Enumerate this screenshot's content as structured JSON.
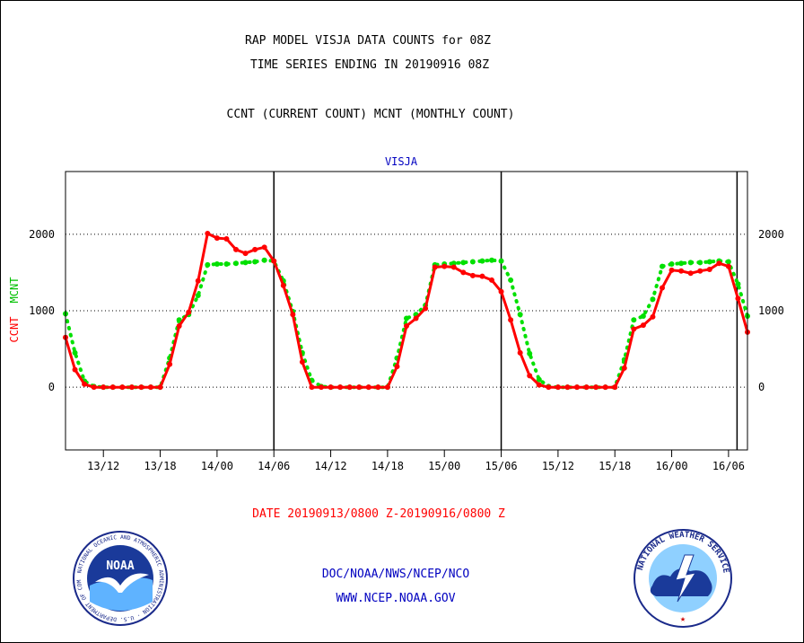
{
  "header": {
    "title_line1": "RAP MODEL VISJA DATA COUNTS for 08Z",
    "title_line2": "TIME SERIES ENDING IN 20190916 08Z",
    "subtitle": "CCNT (CURRENT COUNT) MCNT (MONTHLY COUNT)"
  },
  "footer": {
    "date_range": "DATE 20190913/0800 Z-20190916/0800 Z",
    "org_line": "DOC/NOAA/NWS/NCEP/NCO",
    "url": "WWW.NCEP.NOAA.GOV"
  },
  "logos": {
    "noaa": "NOAA",
    "noaa_ring": "NATIONAL OCEANIC AND ATMOSPHERIC ADMINISTRATION · U.S. DEPARTMENT OF COMMERCE",
    "nws_ring": "NATIONAL WEATHER SERVICE"
  },
  "colors": {
    "ccnt": "#ff0000",
    "mcnt": "#00e000",
    "title_blue": "#0000c0",
    "date_red": "#ff0000"
  },
  "chart_data": {
    "type": "line",
    "title": "VISJA",
    "ylabel_left": [
      "CCNT",
      "MCNT"
    ],
    "ylim": [
      -820,
      2820
    ],
    "yticks": [
      0,
      1000,
      2000
    ],
    "xlim": [
      0,
      72
    ],
    "x_start": "2019-09-13 08Z",
    "xticks": [
      {
        "x": 4,
        "label": "13/12"
      },
      {
        "x": 10,
        "label": "13/18"
      },
      {
        "x": 16,
        "label": "14/00"
      },
      {
        "x": 22,
        "label": "14/06"
      },
      {
        "x": 28,
        "label": "14/12"
      },
      {
        "x": 34,
        "label": "14/18"
      },
      {
        "x": 40,
        "label": "15/00"
      },
      {
        "x": 46,
        "label": "15/06"
      },
      {
        "x": 52,
        "label": "15/12"
      },
      {
        "x": 58,
        "label": "15/18"
      },
      {
        "x": 64,
        "label": "16/00"
      },
      {
        "x": 70,
        "label": "16/06"
      }
    ],
    "vertical_lines": [
      22,
      46,
      70.9
    ],
    "grid": "horizontal dotted at 0, 1000, 2000",
    "series": [
      {
        "name": "CCNT",
        "color": "#ff0000",
        "x": [
          0,
          1,
          2,
          3,
          4,
          5,
          6,
          7,
          8,
          9,
          10,
          11,
          12,
          13,
          14,
          15,
          16,
          17,
          18,
          19,
          20,
          21,
          22,
          23,
          24,
          25,
          26,
          27,
          28,
          29,
          30,
          31,
          32,
          33,
          34,
          35,
          36,
          37,
          38,
          39,
          40,
          41,
          42,
          43,
          44,
          45,
          46,
          47,
          48,
          49,
          50,
          51,
          52,
          53,
          54,
          55,
          56,
          57,
          58,
          59,
          60,
          61,
          62,
          63,
          64,
          65,
          66,
          67,
          68,
          69,
          70,
          71,
          72
        ],
        "values": [
          650,
          230,
          40,
          0,
          0,
          0,
          0,
          0,
          0,
          0,
          0,
          300,
          800,
          980,
          1390,
          2010,
          1950,
          1940,
          1800,
          1750,
          1800,
          1830,
          1650,
          1330,
          950,
          330,
          0,
          0,
          0,
          0,
          0,
          0,
          0,
          0,
          0,
          270,
          800,
          900,
          1030,
          1570,
          1580,
          1570,
          1500,
          1460,
          1450,
          1400,
          1250,
          880,
          450,
          150,
          30,
          0,
          0,
          0,
          0,
          0,
          0,
          0,
          0,
          250,
          760,
          810,
          920,
          1300,
          1530,
          1520,
          1490,
          1520,
          1540,
          1620,
          1580,
          1160,
          720
        ]
      },
      {
        "name": "MCNT",
        "color": "#00e000",
        "x": [
          0,
          1,
          2,
          3,
          4,
          5,
          6,
          7,
          8,
          9,
          10,
          11,
          12,
          13,
          14,
          15,
          16,
          17,
          18,
          19,
          20,
          21,
          22,
          23,
          24,
          25,
          26,
          27,
          28,
          29,
          30,
          31,
          32,
          33,
          34,
          35,
          36,
          37,
          38,
          39,
          40,
          41,
          42,
          43,
          44,
          45,
          46,
          47,
          48,
          49,
          50,
          51,
          52,
          53,
          54,
          55,
          56,
          57,
          58,
          59,
          60,
          61,
          62,
          63,
          64,
          65,
          66,
          67,
          68,
          69,
          70,
          71,
          72
        ],
        "values": [
          960,
          450,
          80,
          10,
          0,
          0,
          0,
          0,
          0,
          0,
          0,
          380,
          880,
          950,
          1200,
          1600,
          1610,
          1610,
          1620,
          1630,
          1640,
          1660,
          1650,
          1390,
          990,
          450,
          90,
          10,
          0,
          0,
          0,
          0,
          0,
          0,
          0,
          380,
          900,
          950,
          1070,
          1600,
          1610,
          1620,
          1630,
          1640,
          1650,
          1660,
          1650,
          1400,
          950,
          440,
          100,
          10,
          0,
          0,
          0,
          0,
          0,
          0,
          0,
          360,
          880,
          930,
          1150,
          1580,
          1610,
          1620,
          1630,
          1630,
          1640,
          1650,
          1640,
          1350,
          930
        ]
      }
    ]
  }
}
